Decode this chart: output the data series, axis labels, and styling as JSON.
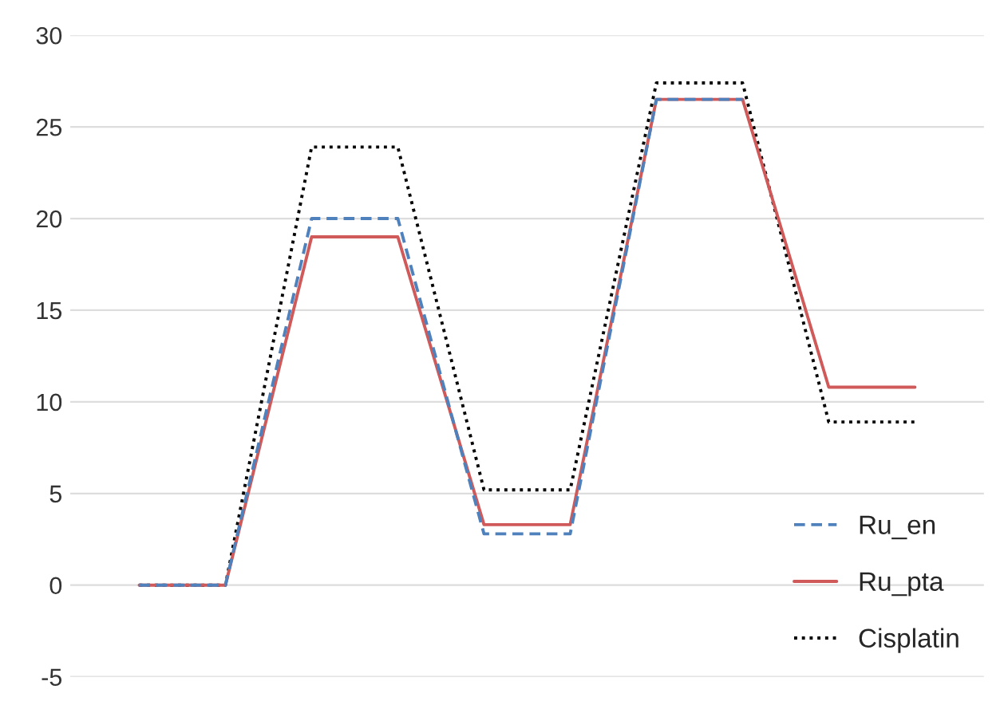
{
  "chart_data": {
    "type": "line",
    "categories": [
      null,
      null,
      null,
      null,
      null,
      null,
      null,
      null,
      null,
      null
    ],
    "series": [
      {
        "name": "Ru_en",
        "color": "#4f81bd",
        "line_style": "dashed",
        "values": [
          0,
          0,
          20,
          20,
          2.8,
          2.8,
          26.5,
          26.5,
          null,
          null
        ]
      },
      {
        "name": "Ru_pta",
        "color": "#d05a5a",
        "line_style": "solid",
        "values": [
          0,
          0,
          19,
          19,
          3.3,
          3.3,
          26.5,
          26.5,
          10.8,
          10.8
        ]
      },
      {
        "name": "Cisplatin",
        "color": "#000000",
        "line_style": "dotted",
        "values": [
          0,
          0,
          23.9,
          23.9,
          5.2,
          5.2,
          27.4,
          27.4,
          8.9,
          8.9
        ]
      }
    ],
    "ylim": [
      -5,
      30
    ],
    "yticks": [
      -5,
      0,
      5,
      10,
      15,
      20,
      25,
      30
    ],
    "grid": "y",
    "legend": "lower right",
    "tick_labels": "y"
  }
}
